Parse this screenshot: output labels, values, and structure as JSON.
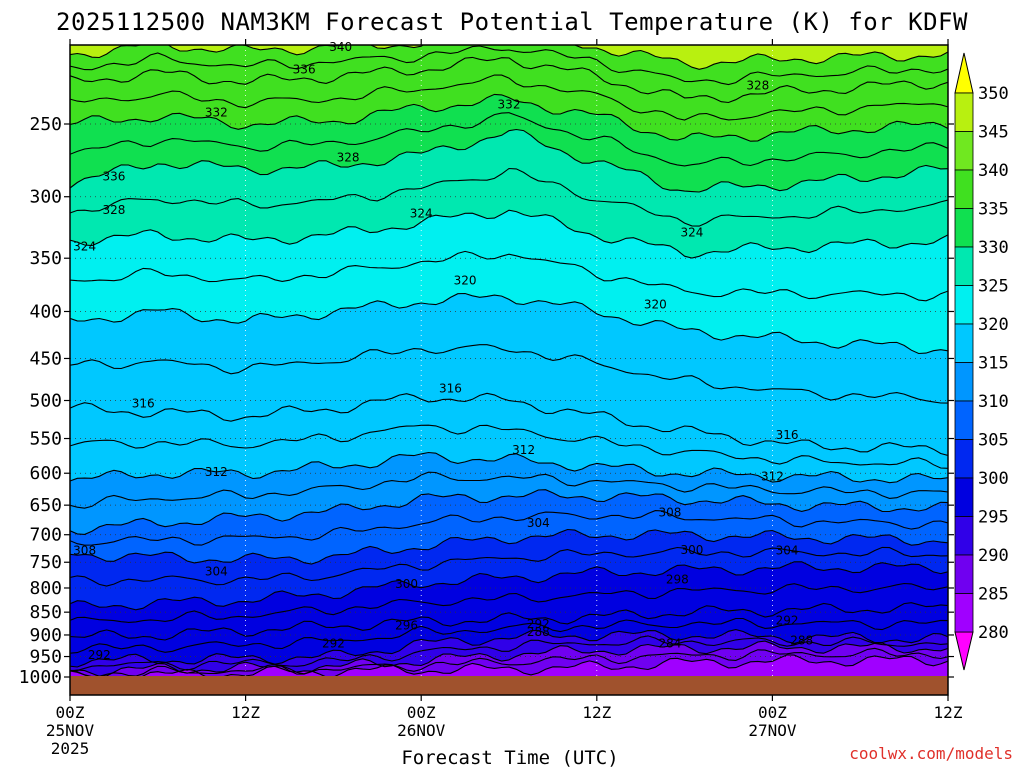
{
  "chart_data": {
    "type": "contour",
    "title": "2025112500 NAM3KM Forecast Potential Temperature (K) for KDFW",
    "xlabel": "Forecast Time (UTC)",
    "ylabel": "",
    "x_ticks": [
      {
        "hour": 0,
        "lines": [
          "00Z",
          "25NOV",
          "2025"
        ]
      },
      {
        "hour": 12,
        "lines": [
          "12Z"
        ]
      },
      {
        "hour": 24,
        "lines": [
          "00Z",
          "26NOV"
        ]
      },
      {
        "hour": 36,
        "lines": [
          "12Z"
        ]
      },
      {
        "hour": 48,
        "lines": [
          "00Z",
          "27NOV"
        ]
      },
      {
        "hour": 60,
        "lines": [
          "12Z"
        ]
      }
    ],
    "xlim": [
      0,
      60
    ],
    "y_ticks": [
      250,
      300,
      350,
      400,
      450,
      500,
      550,
      600,
      650,
      700,
      750,
      800,
      850,
      900,
      950,
      1000
    ],
    "ylim_hpa": [
      200,
      1025
    ],
    "colorbar": {
      "levels": [
        280,
        285,
        290,
        295,
        300,
        305,
        310,
        315,
        320,
        325,
        330,
        335,
        340,
        345,
        350
      ],
      "colors": [
        "#c000ff",
        "#a000ff",
        "#7000f0",
        "#3000e8",
        "#0000e0",
        "#0028f0",
        "#0064ff",
        "#0096ff",
        "#00c8ff",
        "#00f0f0",
        "#00e8b0",
        "#10e050",
        "#40e020",
        "#70e820",
        "#b8f010",
        "#ffff00"
      ],
      "unit": "K"
    },
    "contour_levels_labeled": [
      284,
      288,
      292,
      296,
      298,
      300,
      304,
      308,
      312,
      316,
      320,
      324,
      328,
      332,
      336,
      340
    ],
    "contour_lines": [
      {
        "level": 284,
        "p": [
          1000,
          995,
          990,
          985,
          982,
          980,
          975,
          965,
          960,
          958
        ]
      },
      {
        "level": 288,
        "p": [
          985,
          980,
          978,
          975,
          960,
          945,
          935,
          930,
          928,
          930
        ]
      },
      {
        "level": 292,
        "p": [
          960,
          958,
          955,
          950,
          920,
          905,
          900,
          900,
          905,
          910
        ]
      },
      {
        "level": 296,
        "p": [
          905,
          900,
          890,
          880,
          870,
          865,
          860,
          850,
          845,
          840
        ]
      },
      {
        "level": 300,
        "p": [
          840,
          830,
          825,
          810,
          790,
          780,
          770,
          765,
          760,
          760
        ]
      },
      {
        "level": 304,
        "p": [
          735,
          740,
          745,
          740,
          720,
          705,
          700,
          700,
          705,
          710
        ]
      },
      {
        "level": 308,
        "p": [
          690,
          680,
          670,
          660,
          640,
          635,
          635,
          640,
          650,
          655
        ]
      },
      {
        "level": 312,
        "p": [
          610,
          600,
          600,
          590,
          575,
          580,
          590,
          600,
          605,
          610
        ]
      },
      {
        "level": 316,
        "p": [
          510,
          515,
          520,
          510,
          495,
          500,
          520,
          540,
          560,
          565
        ]
      },
      {
        "level": 320,
        "p": [
          410,
          400,
          410,
          400,
          390,
          385,
          400,
          420,
          430,
          440
        ]
      },
      {
        "level": 324,
        "p": [
          335,
          330,
          335,
          330,
          320,
          310,
          330,
          345,
          340,
          335
        ]
      },
      {
        "level": 328,
        "p": [
          290,
          275,
          280,
          278,
          270,
          255,
          275,
          295,
          290,
          280
        ]
      },
      {
        "level": 332,
        "p": [
          250,
          245,
          250,
          248,
          240,
          235,
          245,
          260,
          255,
          250
        ]
      },
      {
        "level": 336,
        "p": [
          225,
          220,
          225,
          222,
          218,
          212,
          222,
          235,
          230,
          225
        ]
      },
      {
        "level": 340,
        "p": [
          210,
          205,
          208,
          206,
          204,
          200,
          206,
          215,
          212,
          210
        ]
      }
    ],
    "contour_x_hours": [
      0,
      6,
      12,
      18,
      24,
      30,
      36,
      42,
      50,
      60
    ],
    "labels": [
      {
        "text": "340",
        "hour": 18.5,
        "p": 206
      },
      {
        "text": "336",
        "hour": 16.0,
        "p": 218
      },
      {
        "text": "332",
        "hour": 10.0,
        "p": 243
      },
      {
        "text": "332",
        "hour": 30.0,
        "p": 238
      },
      {
        "text": "328",
        "hour": 47.0,
        "p": 227
      },
      {
        "text": "328",
        "hour": 19.0,
        "p": 272
      },
      {
        "text": "336",
        "hour": 3.0,
        "p": 285
      },
      {
        "text": "328",
        "hour": 3.0,
        "p": 310
      },
      {
        "text": "324",
        "hour": 1.0,
        "p": 340
      },
      {
        "text": "324",
        "hour": 24.0,
        "p": 313
      },
      {
        "text": "324",
        "hour": 42.5,
        "p": 328
      },
      {
        "text": "320",
        "hour": 27.0,
        "p": 370
      },
      {
        "text": "320",
        "hour": 40.0,
        "p": 393
      },
      {
        "text": "316",
        "hour": 26.0,
        "p": 485
      },
      {
        "text": "316",
        "hour": 5.0,
        "p": 504
      },
      {
        "text": "316",
        "hour": 49.0,
        "p": 545
      },
      {
        "text": "312",
        "hour": 10.0,
        "p": 598
      },
      {
        "text": "312",
        "hour": 31.0,
        "p": 566
      },
      {
        "text": "312",
        "hour": 48.0,
        "p": 605
      },
      {
        "text": "308",
        "hour": 41.0,
        "p": 662
      },
      {
        "text": "304",
        "hour": 32.0,
        "p": 680
      },
      {
        "text": "308",
        "hour": 1.0,
        "p": 728
      },
      {
        "text": "300",
        "hour": 42.5,
        "p": 727
      },
      {
        "text": "304",
        "hour": 49.0,
        "p": 728
      },
      {
        "text": "304",
        "hour": 10.0,
        "p": 768
      },
      {
        "text": "298",
        "hour": 41.5,
        "p": 783
      },
      {
        "text": "300",
        "hour": 23.0,
        "p": 792
      },
      {
        "text": "296",
        "hour": 23.0,
        "p": 879
      },
      {
        "text": "292",
        "hour": 32.0,
        "p": 876
      },
      {
        "text": "288",
        "hour": 32.0,
        "p": 893
      },
      {
        "text": "292",
        "hour": 49.0,
        "p": 868
      },
      {
        "text": "292",
        "hour": 18.0,
        "p": 920
      },
      {
        "text": "288",
        "hour": 50.0,
        "p": 913
      },
      {
        "text": "284",
        "hour": 41.0,
        "p": 919
      },
      {
        "text": "292",
        "hour": 2.0,
        "p": 946
      }
    ]
  },
  "credit": "coolwx.com/models"
}
